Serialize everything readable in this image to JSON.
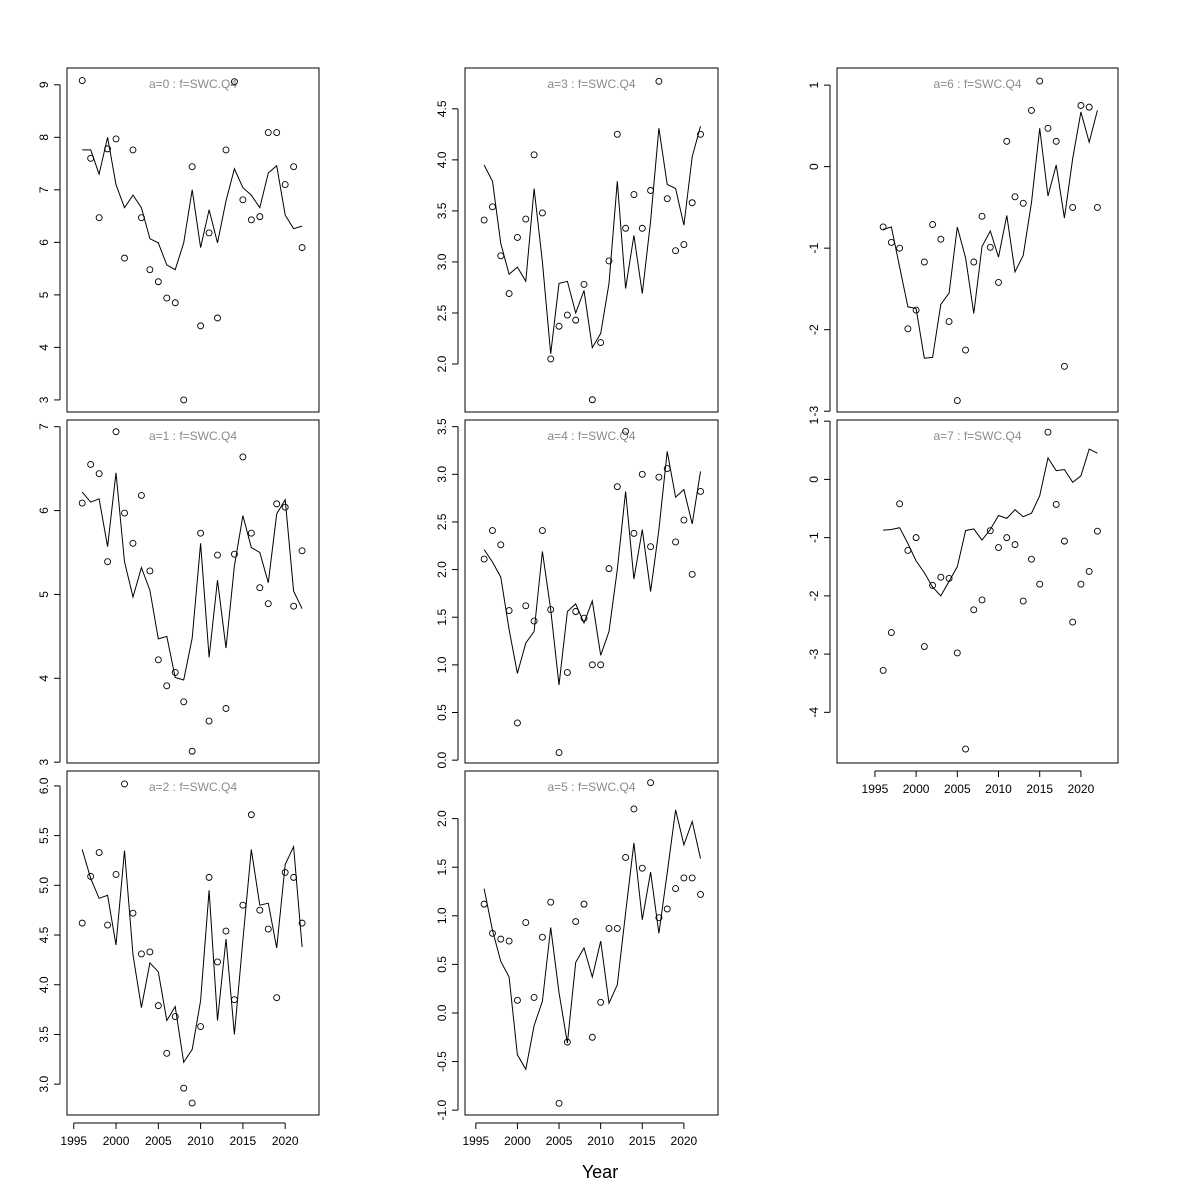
{
  "x_label": "Year",
  "chart_data": [
    {
      "type": "scatter_line",
      "title": "a=0  :  f=SWC.Q4",
      "x": [
        1996,
        1997,
        1998,
        1999,
        2000,
        2001,
        2002,
        2003,
        2004,
        2005,
        2006,
        2007,
        2008,
        2009,
        2010,
        2011,
        2012,
        2013,
        2014,
        2015,
        2016,
        2017,
        2018,
        2019,
        2020,
        2021,
        2022
      ],
      "observed": [
        9.08,
        7.6,
        6.47,
        7.78,
        7.97,
        5.7,
        7.76,
        6.47,
        5.48,
        5.25,
        4.94,
        4.85,
        3.0,
        7.44,
        4.41,
        6.18,
        4.56,
        7.76,
        9.06,
        6.81,
        6.43,
        6.49,
        8.09,
        8.09,
        7.1,
        7.44,
        5.9
      ],
      "fitted": [
        7.76,
        7.76,
        7.3,
        8.0,
        7.1,
        6.66,
        6.9,
        6.66,
        6.07,
        5.99,
        5.57,
        5.48,
        5.99,
        7.0,
        5.9,
        6.62,
        5.99,
        6.79,
        7.4,
        7.04,
        6.9,
        6.66,
        7.32,
        7.46,
        6.52,
        6.26,
        6.31
      ],
      "xlim": [
        1994.2,
        2024
      ],
      "ylim": [
        2.77,
        9.32
      ],
      "yticks": [
        3,
        4,
        5,
        6,
        7,
        8,
        9
      ]
    },
    {
      "type": "scatter_line",
      "title": "a=1  :  f=SWC.Q4",
      "x": [
        1996,
        1997,
        1998,
        1999,
        2000,
        2001,
        2002,
        2003,
        2004,
        2005,
        2006,
        2007,
        2008,
        2009,
        2010,
        2011,
        2012,
        2013,
        2014,
        2015,
        2016,
        2017,
        2018,
        2019,
        2020,
        2021,
        2022
      ],
      "observed": [
        6.09,
        6.55,
        6.44,
        5.39,
        6.94,
        5.97,
        5.61,
        6.18,
        5.28,
        4.22,
        3.91,
        4.07,
        3.72,
        3.13,
        5.73,
        3.49,
        5.47,
        3.64,
        5.48,
        6.64,
        5.73,
        5.08,
        4.89,
        6.08,
        6.04,
        4.86,
        5.52
      ],
      "fitted": [
        6.22,
        6.1,
        6.14,
        5.57,
        6.45,
        5.39,
        4.97,
        5.32,
        5.05,
        4.47,
        4.5,
        4.01,
        3.98,
        4.48,
        5.61,
        4.25,
        5.17,
        4.36,
        5.34,
        5.94,
        5.56,
        5.5,
        5.14,
        5.96,
        6.13,
        5.04,
        4.83
      ],
      "xlim": [
        1994.2,
        2024
      ],
      "ylim": [
        2.99,
        7.08
      ],
      "yticks": [
        3,
        4,
        5,
        6,
        7
      ]
    },
    {
      "type": "scatter_line",
      "title": "a=2  :  f=SWC.Q4",
      "x": [
        1996,
        1997,
        1998,
        1999,
        2000,
        2001,
        2002,
        2003,
        2004,
        2005,
        2006,
        2007,
        2008,
        2009,
        2010,
        2011,
        2012,
        2013,
        2014,
        2015,
        2016,
        2017,
        2018,
        2019,
        2020,
        2021,
        2022
      ],
      "observed": [
        4.62,
        5.09,
        5.33,
        4.6,
        5.11,
        6.02,
        4.72,
        4.31,
        4.33,
        3.79,
        3.31,
        3.68,
        2.96,
        2.81,
        3.58,
        5.08,
        4.23,
        4.54,
        3.85,
        4.8,
        5.71,
        4.75,
        4.56,
        3.87,
        5.13,
        5.08,
        4.62
      ],
      "fitted": [
        5.36,
        5.07,
        4.87,
        4.9,
        4.4,
        5.35,
        4.3,
        3.77,
        4.22,
        4.13,
        3.64,
        3.78,
        3.22,
        3.35,
        3.84,
        4.95,
        3.64,
        4.46,
        3.5,
        4.45,
        5.36,
        4.8,
        4.82,
        4.37,
        5.21,
        5.39,
        4.38
      ],
      "xlim": [
        1994.2,
        2024
      ],
      "ylim": [
        2.69,
        6.15
      ],
      "yticks": [
        {
          "value": 3,
          "label": "3.0"
        },
        3.5,
        {
          "value": 4,
          "label": "4.0"
        },
        4.5,
        {
          "value": 5,
          "label": "5.0"
        },
        5.5,
        {
          "value": 6,
          "label": "6.0"
        }
      ],
      "xticks": [
        1995,
        2000,
        2005,
        2010,
        2015,
        2020
      ]
    },
    {
      "type": "scatter_line",
      "title": "a=3  :  f=SWC.Q4",
      "x": [
        1996,
        1997,
        1998,
        1999,
        2000,
        2001,
        2002,
        2003,
        2004,
        2005,
        2006,
        2007,
        2008,
        2009,
        2010,
        2011,
        2012,
        2013,
        2014,
        2015,
        2016,
        2017,
        2018,
        2019,
        2020,
        2021,
        2022
      ],
      "observed": [
        3.41,
        3.54,
        3.06,
        2.69,
        3.24,
        3.42,
        4.05,
        3.48,
        2.05,
        2.37,
        2.48,
        2.43,
        2.78,
        1.65,
        2.21,
        3.01,
        4.25,
        3.33,
        3.66,
        3.33,
        3.7,
        4.77,
        3.62,
        3.11,
        3.17,
        3.58,
        4.25
      ],
      "fitted": [
        3.95,
        3.79,
        3.18,
        2.88,
        2.95,
        2.81,
        3.72,
        3.0,
        2.1,
        2.79,
        2.81,
        2.5,
        2.72,
        2.16,
        2.3,
        2.79,
        3.79,
        2.74,
        3.26,
        2.69,
        3.4,
        4.31,
        3.76,
        3.72,
        3.36,
        4.03,
        4.33
      ],
      "xlim": [
        1993.7,
        2024.1
      ],
      "ylim": [
        1.53,
        4.9
      ],
      "yticks": [
        {
          "value": 2,
          "label": "2.0"
        },
        2.5,
        {
          "value": 3,
          "label": "3.0"
        },
        3.5,
        {
          "value": 4,
          "label": "4.0"
        },
        4.5
      ]
    },
    {
      "type": "scatter_line",
      "title": "a=4  :  f=SWC.Q4",
      "x": [
        1996,
        1997,
        1998,
        1999,
        2000,
        2001,
        2002,
        2003,
        2004,
        2005,
        2006,
        2007,
        2008,
        2009,
        2010,
        2011,
        2012,
        2013,
        2014,
        2015,
        2016,
        2017,
        2018,
        2019,
        2020,
        2021,
        2022
      ],
      "observed": [
        2.11,
        2.41,
        2.26,
        1.57,
        0.39,
        1.62,
        1.46,
        2.41,
        1.58,
        0.08,
        0.92,
        1.56,
        1.49,
        1.0,
        1.0,
        2.01,
        2.87,
        3.45,
        2.38,
        3.0,
        2.24,
        2.97,
        3.06,
        2.29,
        2.52,
        1.95,
        2.82
      ],
      "fitted": [
        2.21,
        2.08,
        1.92,
        1.37,
        0.91,
        1.23,
        1.35,
        2.19,
        1.58,
        0.79,
        1.56,
        1.64,
        1.44,
        1.67,
        1.1,
        1.35,
        2.0,
        2.82,
        1.9,
        2.42,
        1.77,
        2.42,
        3.24,
        2.76,
        2.84,
        2.48,
        3.03
      ],
      "xlim": [
        1993.7,
        2024.1
      ],
      "ylim": [
        -0.03,
        3.57
      ],
      "yticks": [
        {
          "value": 0,
          "label": "0.0"
        },
        0.5,
        {
          "value": 1,
          "label": "1.0"
        },
        1.5,
        {
          "value": 2,
          "label": "2.0"
        },
        2.5,
        {
          "value": 3,
          "label": "3.0"
        },
        3.5
      ]
    },
    {
      "type": "scatter_line",
      "title": "a=5  :  f=SWC.Q4",
      "x": [
        1996,
        1997,
        1998,
        1999,
        2000,
        2001,
        2002,
        2003,
        2004,
        2005,
        2006,
        2007,
        2008,
        2009,
        2010,
        2011,
        2012,
        2013,
        2014,
        2015,
        2016,
        2017,
        2018,
        2019,
        2020,
        2021,
        2022
      ],
      "observed": [
        1.12,
        0.82,
        0.76,
        0.74,
        0.13,
        0.93,
        0.16,
        0.78,
        1.14,
        -0.93,
        -0.3,
        0.94,
        1.12,
        -0.25,
        0.11,
        0.87,
        0.87,
        1.6,
        2.1,
        1.49,
        2.37,
        0.98,
        1.07,
        1.28,
        1.39,
        1.39,
        1.22
      ],
      "fitted": [
        1.28,
        0.85,
        0.53,
        0.37,
        -0.43,
        -0.58,
        -0.13,
        0.12,
        0.88,
        0.21,
        -0.31,
        0.52,
        0.67,
        0.37,
        0.74,
        0.1,
        0.29,
        1.03,
        1.75,
        0.96,
        1.45,
        0.82,
        1.44,
        2.09,
        1.73,
        1.97,
        1.59
      ],
      "xlim": [
        1993.7,
        2024.1
      ],
      "ylim": [
        -1.05,
        2.49
      ],
      "yticks": [
        {
          "value": -1,
          "label": "-1.0"
        },
        -0.5,
        {
          "value": 0,
          "label": "0.0"
        },
        0.5,
        {
          "value": 1,
          "label": "1.0"
        },
        1.5,
        {
          "value": 2,
          "label": "2.0"
        }
      ],
      "xticks": [
        1995,
        2000,
        2005,
        2010,
        2015,
        2020
      ]
    },
    {
      "type": "scatter_line",
      "title": "a=6  :  f=SWC.Q4",
      "x": [
        1996,
        1997,
        1998,
        1999,
        2000,
        2001,
        2002,
        2003,
        2004,
        2005,
        2006,
        2007,
        2008,
        2009,
        2010,
        2011,
        2012,
        2013,
        2014,
        2015,
        2016,
        2017,
        2018,
        2019,
        2020,
        2021,
        2022
      ],
      "observed": [
        -0.74,
        -0.93,
        -1.0,
        -1.99,
        -1.76,
        -1.17,
        -0.71,
        -0.89,
        -1.9,
        -2.87,
        -2.25,
        -1.17,
        -0.61,
        -0.99,
        -1.42,
        0.31,
        -0.37,
        -0.45,
        0.69,
        1.05,
        0.47,
        0.31,
        -2.45,
        -0.5,
        0.75,
        0.73,
        -0.5
      ],
      "fitted": [
        -0.77,
        -0.74,
        -1.23,
        -1.72,
        -1.74,
        -2.35,
        -2.34,
        -1.69,
        -1.55,
        -0.74,
        -1.12,
        -1.8,
        -0.98,
        -0.79,
        -1.11,
        -0.6,
        -1.29,
        -1.09,
        -0.44,
        0.47,
        -0.36,
        0.02,
        -0.63,
        0.1,
        0.67,
        0.3,
        0.69
      ],
      "xlim": [
        1990.4,
        2024.5
      ],
      "ylim": [
        -3.01,
        1.21
      ],
      "yticks": [
        -3,
        -2,
        -1,
        0,
        1
      ]
    },
    {
      "type": "scatter_line",
      "title": "a=7  :  f=SWC.Q4",
      "x": [
        1996,
        1997,
        1998,
        1999,
        2000,
        2001,
        2002,
        2003,
        2004,
        2005,
        2006,
        2007,
        2008,
        2009,
        2010,
        2011,
        2012,
        2013,
        2014,
        2015,
        2016,
        2017,
        2018,
        2019,
        2020,
        2021,
        2022
      ],
      "observed": [
        -3.28,
        -2.63,
        -0.42,
        -1.22,
        -1.0,
        -2.87,
        -1.82,
        -1.68,
        -1.7,
        -2.98,
        -4.63,
        -2.24,
        -2.07,
        -0.88,
        -1.17,
        -1.0,
        -1.12,
        -2.09,
        -1.37,
        -1.8,
        0.81,
        -0.43,
        -1.06,
        -2.45,
        -1.8,
        -1.58,
        -0.89
      ],
      "fitted": [
        -0.87,
        -0.86,
        -0.83,
        -1.1,
        -1.4,
        -1.6,
        -1.85,
        -2.0,
        -1.75,
        -1.5,
        -0.88,
        -0.85,
        -1.04,
        -0.86,
        -0.62,
        -0.67,
        -0.52,
        -0.64,
        -0.58,
        -0.28,
        0.37,
        0.15,
        0.17,
        -0.05,
        0.06,
        0.52,
        0.45
      ],
      "xlim": [
        1990.4,
        2024.5
      ],
      "ylim": [
        -4.87,
        1.02
      ],
      "yticks": [
        -4,
        -3,
        -2,
        -1,
        0,
        1
      ],
      "xticks": [
        1995,
        2000,
        2005,
        2010,
        2015,
        2020
      ]
    }
  ]
}
